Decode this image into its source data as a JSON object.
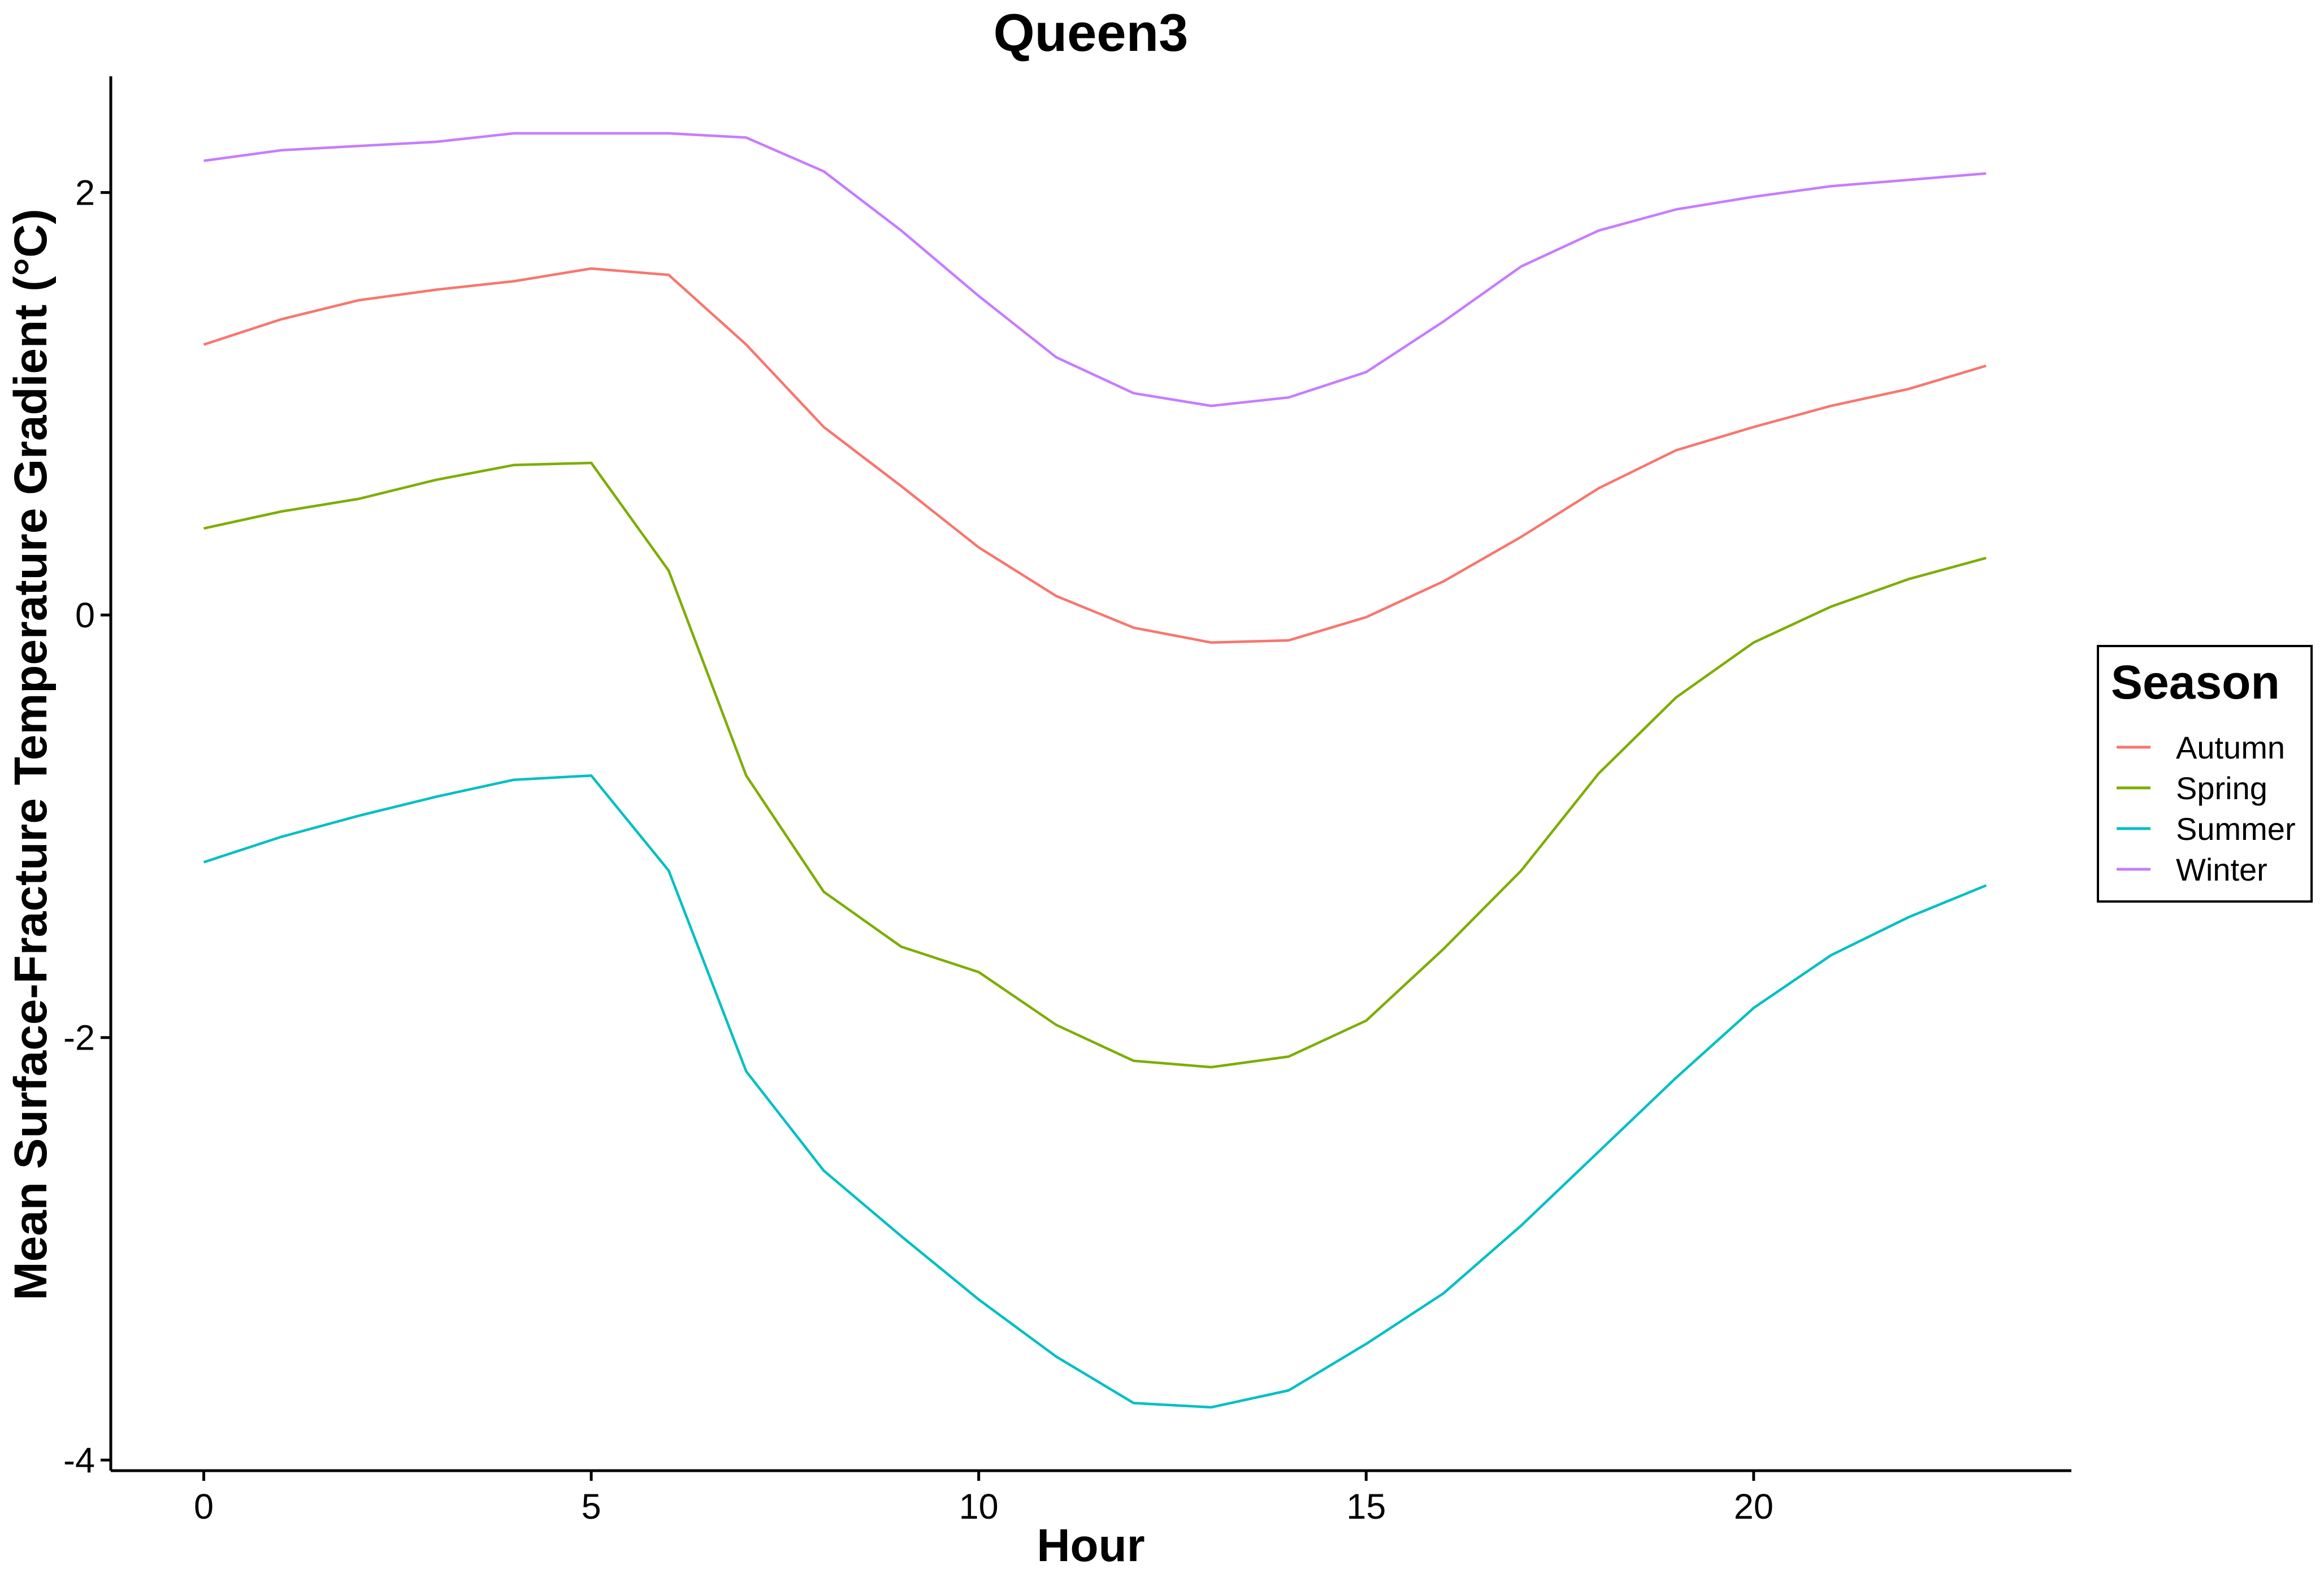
{
  "chart_data": {
    "type": "line",
    "title": "Queen3",
    "xlabel": "Hour",
    "ylabel": "Mean Surface-Fracture Temperature Gradient (°C)",
    "xlim": [
      -1.2,
      24.1
    ],
    "ylim": [
      -4.05,
      2.55
    ],
    "xticks": [
      0,
      5,
      10,
      15,
      20
    ],
    "yticks": [
      -4,
      -2,
      0,
      2
    ],
    "x": [
      0,
      1,
      2,
      3,
      4,
      5,
      6,
      7,
      8,
      9,
      10,
      11,
      12,
      13,
      14,
      15,
      16,
      17,
      18,
      19,
      20,
      21,
      22,
      23
    ],
    "grid": false,
    "legend_position": "right",
    "legend_title": "Season",
    "series": [
      {
        "name": "Autumn",
        "color": "#F8766D",
        "values": [
          1.28,
          1.4,
          1.49,
          1.54,
          1.58,
          1.64,
          1.61,
          1.28,
          0.89,
          0.61,
          0.32,
          0.09,
          -0.06,
          -0.13,
          -0.12,
          -0.01,
          0.16,
          0.37,
          0.6,
          0.78,
          0.89,
          0.99,
          1.07,
          1.18
        ]
      },
      {
        "name": "Spring",
        "color": "#7CAE00",
        "values": [
          0.41,
          0.49,
          0.55,
          0.64,
          0.71,
          0.72,
          0.21,
          -0.76,
          -1.31,
          -1.57,
          -1.69,
          -1.94,
          -2.11,
          -2.14,
          -2.09,
          -1.92,
          -1.58,
          -1.21,
          -0.75,
          -0.39,
          -0.13,
          0.04,
          0.17,
          0.27
        ]
      },
      {
        "name": "Summer",
        "color": "#00BFC4",
        "values": [
          -1.17,
          -1.05,
          -0.95,
          -0.86,
          -0.78,
          -0.76,
          -1.21,
          -2.16,
          -2.63,
          -2.94,
          -3.24,
          -3.51,
          -3.73,
          -3.75,
          -3.67,
          -3.45,
          -3.21,
          -2.89,
          -2.54,
          -2.19,
          -1.86,
          -1.61,
          -1.43,
          -1.28
        ]
      },
      {
        "name": "Winter",
        "color": "#C77CFF",
        "values": [
          2.15,
          2.2,
          2.22,
          2.24,
          2.28,
          2.28,
          2.28,
          2.26,
          2.1,
          1.82,
          1.51,
          1.22,
          1.05,
          0.99,
          1.03,
          1.15,
          1.39,
          1.65,
          1.82,
          1.92,
          1.98,
          2.03,
          2.06,
          2.09
        ]
      }
    ]
  }
}
